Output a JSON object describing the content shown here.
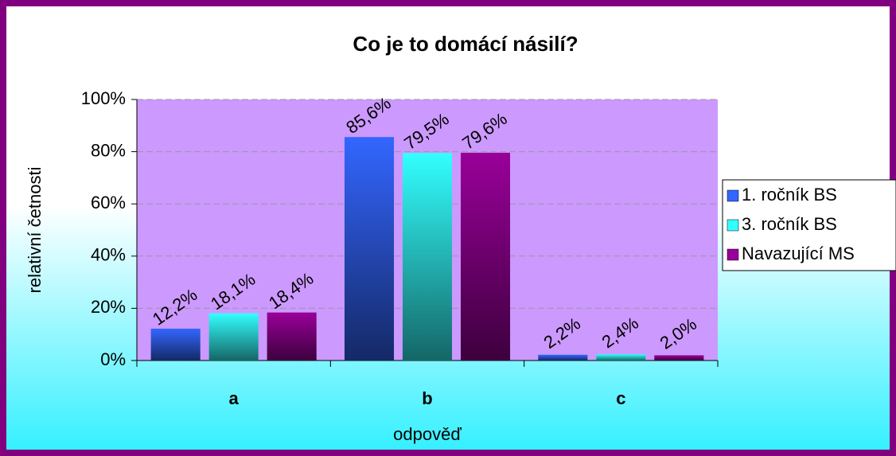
{
  "chart_data": {
    "type": "bar",
    "title": "Co je to domácí násilí?",
    "x_label": "odpověď",
    "y_label": "relativní četnosti",
    "categories": [
      "a",
      "b",
      "c"
    ],
    "series": [
      {
        "name": "1. ročník BS",
        "color": "#3366ff",
        "values": [
          12.2,
          85.6,
          2.2
        ],
        "value_labels": [
          "12,2%",
          "85,6%",
          "2,2%"
        ]
      },
      {
        "name": "3. ročník BS",
        "color": "#33ffff",
        "values": [
          18.1,
          79.5,
          2.4
        ],
        "value_labels": [
          "18,1%",
          "79,5%",
          "2,4%"
        ]
      },
      {
        "name": "Navazující MS",
        "color": "#990099",
        "values": [
          18.4,
          79.6,
          2.0
        ],
        "value_labels": [
          "18,4%",
          "79,6%",
          "2,0%"
        ]
      }
    ],
    "ylim": [
      0,
      100
    ],
    "yticks": [
      {
        "value": 0,
        "label": "0%"
      },
      {
        "value": 20,
        "label": "20%"
      },
      {
        "value": 40,
        "label": "40%"
      },
      {
        "value": 60,
        "label": "60%"
      },
      {
        "value": 80,
        "label": "80%"
      },
      {
        "value": 100,
        "label": "100%"
      }
    ],
    "grid": true,
    "legend": "right"
  }
}
